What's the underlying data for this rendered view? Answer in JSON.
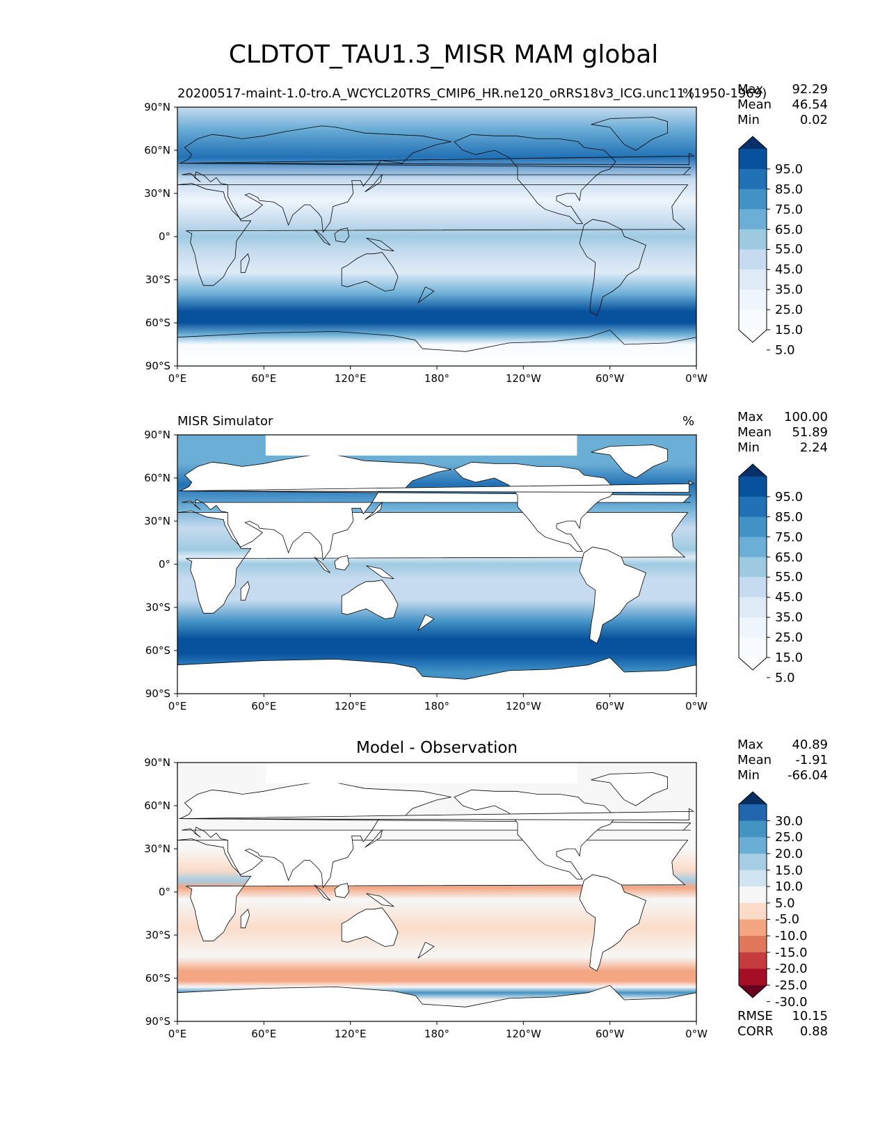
{
  "figure": {
    "title": "CLDTOT_TAU1.3_MISR MAM global",
    "x_ticks": [
      "0°E",
      "60°E",
      "120°E",
      "180°",
      "120°W",
      "60°W",
      "0°W"
    ],
    "y_ticks": [
      "90°N",
      "60°N",
      "30°N",
      "0°",
      "30°S",
      "60°S",
      "90°S"
    ]
  },
  "panels": [
    {
      "id": "model",
      "title_left": "20200517-maint-1.0-tro.A_WCYCL20TRS_CMIP6_HR.ne120_oRRS18v3_ICG.unc11 (1950-1969)",
      "units": "%",
      "stats": [
        {
          "label": "Max",
          "value": "92.29"
        },
        {
          "label": "Mean",
          "value": "46.54"
        },
        {
          "label": "Min",
          "value": "0.02"
        }
      ],
      "colorbar": {
        "labels": [
          "95.0",
          "85.0",
          "75.0",
          "65.0",
          "55.0",
          "45.0",
          "35.0",
          "25.0",
          "15.0",
          "5.0"
        ],
        "colors": [
          "#08306b",
          "#08519c",
          "#2171b5",
          "#4292c6",
          "#6baed6",
          "#9ecae1",
          "#c6dbef",
          "#deebf7",
          "#eef5fc",
          "#f7fbff",
          "#ffffff"
        ]
      }
    },
    {
      "id": "obs",
      "title_left": "MISR Simulator",
      "units": "%",
      "stats": [
        {
          "label": "Max",
          "value": "100.00"
        },
        {
          "label": "Mean",
          "value": "51.89"
        },
        {
          "label": "Min",
          "value": "2.24"
        }
      ],
      "colorbar": {
        "labels": [
          "95.0",
          "85.0",
          "75.0",
          "65.0",
          "55.0",
          "45.0",
          "35.0",
          "25.0",
          "15.0",
          "5.0"
        ],
        "colors": [
          "#08306b",
          "#08519c",
          "#2171b5",
          "#4292c6",
          "#6baed6",
          "#9ecae1",
          "#c6dbef",
          "#deebf7",
          "#eef5fc",
          "#f7fbff",
          "#ffffff"
        ]
      }
    },
    {
      "id": "diff",
      "title_center": "Model - Observation",
      "stats": [
        {
          "label": "Max",
          "value": "40.89"
        },
        {
          "label": "Mean",
          "value": "-1.91"
        },
        {
          "label": "Min",
          "value": "-66.04"
        }
      ],
      "metrics": [
        {
          "label": "RMSE",
          "value": "10.15"
        },
        {
          "label": "CORR",
          "value": "0.88"
        }
      ],
      "colorbar": {
        "labels": [
          "30.0",
          "25.0",
          "20.0",
          "15.0",
          "10.0",
          "5.0",
          "-5.0",
          "-10.0",
          "-15.0",
          "-20.0",
          "-25.0",
          "-30.0"
        ],
        "colors": [
          "#053061",
          "#2166ac",
          "#4393c3",
          "#6aaed6",
          "#a6cde3",
          "#d1e5f0",
          "#f7f7f7",
          "#fbdcc9",
          "#f4a582",
          "#e0785c",
          "#c43c3c",
          "#a50f26",
          "#67001f"
        ]
      }
    }
  ]
}
